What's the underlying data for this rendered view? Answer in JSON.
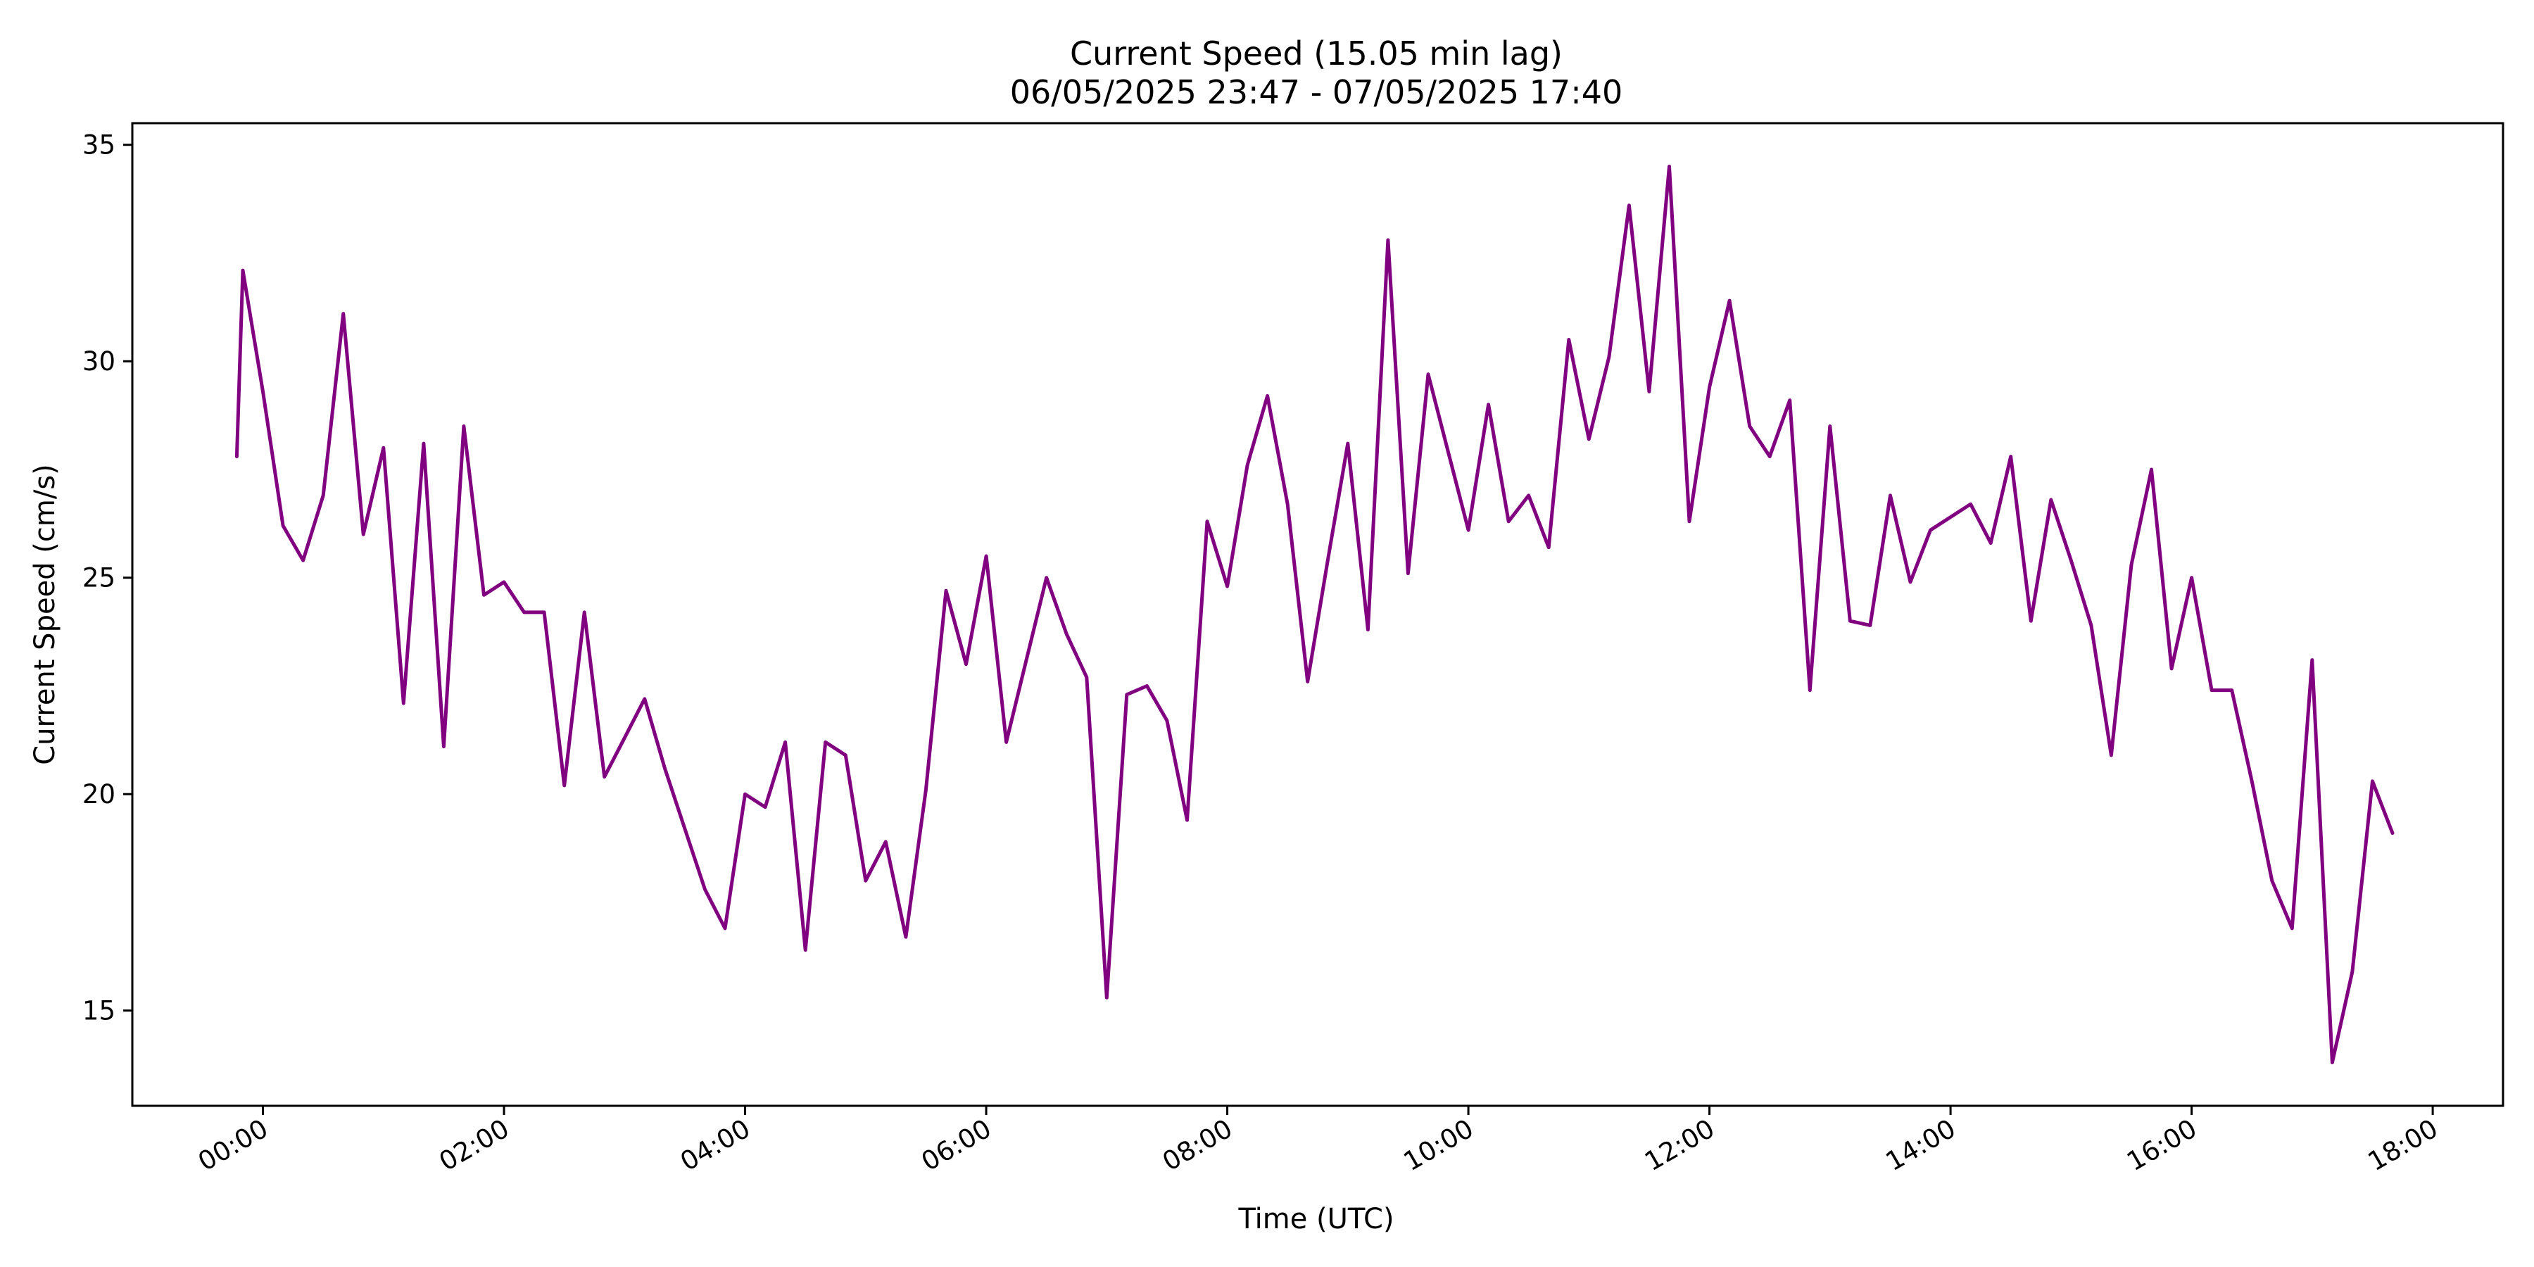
{
  "chart_data": {
    "type": "line",
    "title": "Current Speed (15.05 min lag)",
    "subtitle": "06/05/2025 23:47 - 07/05/2025 17:40",
    "xlabel": "Time (UTC)",
    "ylabel": "Current Speed (cm/s)",
    "xlim": [
      "2025-05-06T22:55",
      "2025-05-07T18:35"
    ],
    "ylim": [
      12.8,
      35.5
    ],
    "x_ticks": [
      "00:00",
      "02:00",
      "04:00",
      "06:00",
      "08:00",
      "10:00",
      "12:00",
      "14:00",
      "16:00",
      "18:00"
    ],
    "y_ticks": [
      "15",
      "20",
      "25",
      "30",
      "35"
    ],
    "grid": false,
    "line_color": "#800080",
    "series": [
      {
        "x": [
          "2025-05-06T23:47",
          "2025-05-06T23:50",
          "2025-05-07T00:00",
          "2025-05-07T00:10",
          "2025-05-07T00:20",
          "2025-05-07T00:30",
          "2025-05-07T00:40",
          "2025-05-07T00:50",
          "2025-05-07T01:00",
          "2025-05-07T01:10",
          "2025-05-07T01:20",
          "2025-05-07T01:30",
          "2025-05-07T01:40",
          "2025-05-07T01:50",
          "2025-05-07T02:00",
          "2025-05-07T02:10",
          "2025-05-07T02:20",
          "2025-05-07T02:30",
          "2025-05-07T02:40",
          "2025-05-07T02:50",
          "2025-05-07T03:00",
          "2025-05-07T03:10",
          "2025-05-07T03:20",
          "2025-05-07T03:30",
          "2025-05-07T03:40",
          "2025-05-07T03:50",
          "2025-05-07T04:00",
          "2025-05-07T04:10",
          "2025-05-07T04:20",
          "2025-05-07T04:30",
          "2025-05-07T04:40",
          "2025-05-07T04:50",
          "2025-05-07T05:00",
          "2025-05-07T05:10",
          "2025-05-07T05:20",
          "2025-05-07T05:30",
          "2025-05-07T05:40",
          "2025-05-07T05:50",
          "2025-05-07T06:00",
          "2025-05-07T06:10",
          "2025-05-07T06:20",
          "2025-05-07T06:30",
          "2025-05-07T06:40",
          "2025-05-07T06:50",
          "2025-05-07T07:00",
          "2025-05-07T07:10",
          "2025-05-07T07:20",
          "2025-05-07T07:30",
          "2025-05-07T07:40",
          "2025-05-07T07:50",
          "2025-05-07T08:00",
          "2025-05-07T08:10",
          "2025-05-07T08:20",
          "2025-05-07T08:30",
          "2025-05-07T08:40",
          "2025-05-07T08:50",
          "2025-05-07T09:00",
          "2025-05-07T09:10",
          "2025-05-07T09:20",
          "2025-05-07T09:30",
          "2025-05-07T09:40",
          "2025-05-07T09:50",
          "2025-05-07T10:00",
          "2025-05-07T10:10",
          "2025-05-07T10:20",
          "2025-05-07T10:30",
          "2025-05-07T10:40",
          "2025-05-07T10:50",
          "2025-05-07T11:00",
          "2025-05-07T11:10",
          "2025-05-07T11:20",
          "2025-05-07T11:30",
          "2025-05-07T11:40",
          "2025-05-07T11:50",
          "2025-05-07T12:00",
          "2025-05-07T12:10",
          "2025-05-07T12:20",
          "2025-05-07T12:30",
          "2025-05-07T12:40",
          "2025-05-07T12:50",
          "2025-05-07T13:00",
          "2025-05-07T13:10",
          "2025-05-07T13:20",
          "2025-05-07T13:30",
          "2025-05-07T13:40",
          "2025-05-07T13:50",
          "2025-05-07T14:00",
          "2025-05-07T14:10",
          "2025-05-07T14:20",
          "2025-05-07T14:30",
          "2025-05-07T14:40",
          "2025-05-07T14:50",
          "2025-05-07T15:00",
          "2025-05-07T15:10",
          "2025-05-07T15:20",
          "2025-05-07T15:30",
          "2025-05-07T15:40",
          "2025-05-07T15:50",
          "2025-05-07T16:00",
          "2025-05-07T16:10",
          "2025-05-07T16:20",
          "2025-05-07T16:30",
          "2025-05-07T16:40",
          "2025-05-07T16:50",
          "2025-05-07T17:00",
          "2025-05-07T17:10",
          "2025-05-07T17:20",
          "2025-05-07T17:30",
          "2025-05-07T17:40"
        ],
        "values": [
          27.8,
          32.1,
          29.3,
          26.2,
          25.4,
          26.9,
          31.1,
          26.0,
          28.0,
          22.1,
          28.1,
          21.1,
          28.5,
          24.6,
          24.9,
          24.2,
          24.2,
          20.2,
          24.2,
          20.4,
          21.3,
          22.2,
          20.6,
          19.2,
          17.8,
          16.9,
          20.0,
          19.7,
          21.2,
          16.4,
          21.2,
          20.9,
          18.0,
          18.9,
          16.7,
          20.1,
          24.7,
          23.0,
          25.5,
          21.2,
          23.1,
          25.0,
          23.7,
          22.7,
          15.3,
          22.3,
          22.5,
          21.7,
          19.4,
          26.3,
          24.8,
          27.6,
          29.2,
          26.7,
          22.6,
          25.4,
          28.1,
          23.8,
          32.8,
          25.1,
          29.7,
          27.9,
          26.1,
          29.0,
          26.3,
          26.9,
          25.7,
          30.5,
          28.2,
          30.1,
          33.6,
          29.3,
          34.5,
          26.3,
          29.4,
          31.4,
          28.5,
          27.8,
          29.1,
          22.4,
          28.5,
          24.0,
          23.9,
          26.9,
          24.9,
          26.1,
          26.4,
          26.7,
          25.8,
          27.8,
          24.0,
          26.8,
          25.4,
          23.9,
          20.9,
          25.3,
          27.5,
          22.9,
          25.0,
          22.4,
          22.4,
          20.3,
          18.0,
          16.9,
          23.1,
          13.8,
          15.9,
          20.3,
          19.1
        ]
      }
    ]
  }
}
